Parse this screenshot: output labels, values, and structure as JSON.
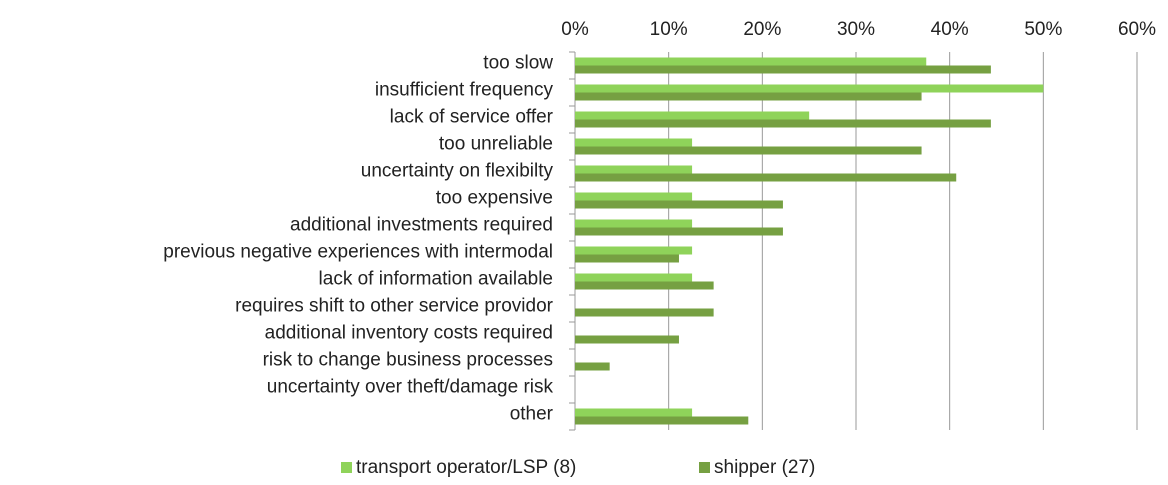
{
  "chart_data": {
    "type": "hbar",
    "categories": [
      "too slow",
      "insufficient frequency",
      "lack of service offer",
      "too unreliable",
      "uncertainty on flexibilty",
      "too expensive",
      "additional investments required",
      "previous negative experiences with intermodal",
      "lack of information available",
      "requires shift to other service providor",
      "additional inventory costs required",
      "risk to change business processes",
      "uncertainty over theft/damage risk",
      "other"
    ],
    "series": [
      {
        "name": "transport operator/LSP (8)",
        "color": "#8fd35a",
        "values": [
          37.5,
          50,
          25,
          12.5,
          12.5,
          12.5,
          12.5,
          12.5,
          12.5,
          0,
          0,
          0,
          0,
          12.5
        ]
      },
      {
        "name": "shipper (27)",
        "color": "#76a042",
        "values": [
          44.4,
          37,
          44.4,
          37,
          40.7,
          22.2,
          22.2,
          11.1,
          14.8,
          14.8,
          11.1,
          3.7,
          0,
          18.5
        ]
      }
    ],
    "xlim": [
      0,
      60
    ],
    "xticks": [
      {
        "value": 0,
        "label": "0%"
      },
      {
        "value": 10,
        "label": "10%"
      },
      {
        "value": 20,
        "label": "20%"
      },
      {
        "value": 30,
        "label": "30%"
      },
      {
        "value": 40,
        "label": "40%"
      },
      {
        "value": 50,
        "label": "50%"
      },
      {
        "value": 60,
        "label": "60%"
      }
    ],
    "grid": true,
    "legend": "bottom"
  }
}
